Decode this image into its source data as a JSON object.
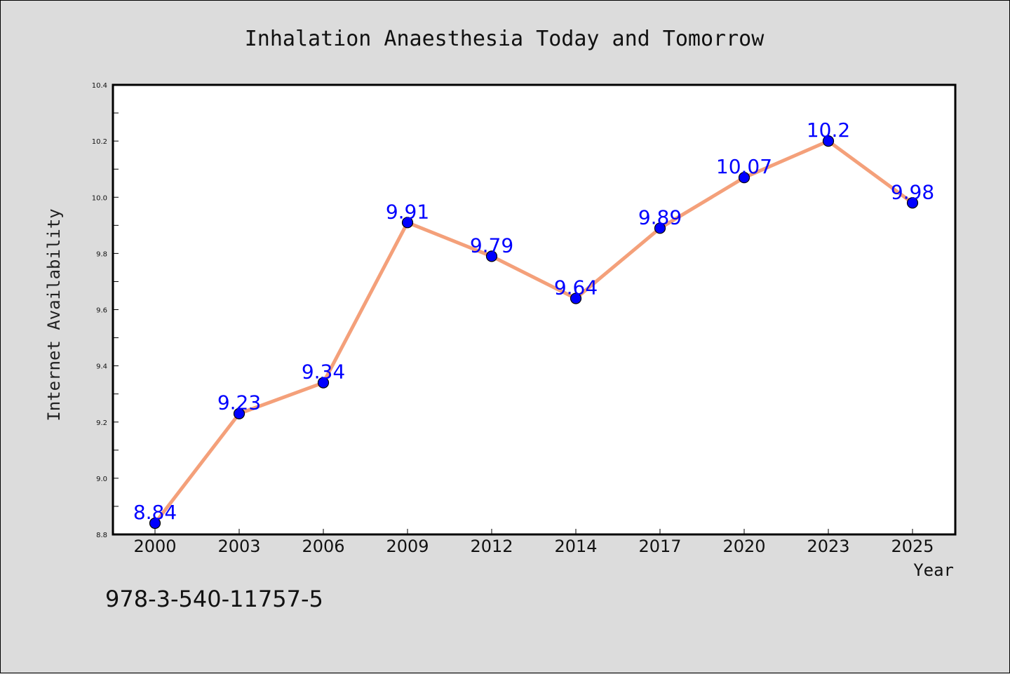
{
  "chart_data": {
    "type": "line",
    "title": "Inhalation Anaesthesia Today and Tomorrow",
    "xlabel": "Year",
    "ylabel": "Internet Availability",
    "categories": [
      "2000",
      "2003",
      "2006",
      "2009",
      "2012",
      "2014",
      "2017",
      "2020",
      "2023",
      "2025"
    ],
    "values": [
      8.84,
      9.23,
      9.34,
      9.91,
      9.79,
      9.64,
      9.89,
      10.07,
      10.2,
      9.98
    ],
    "data_labels": [
      "8.84",
      "9.23",
      "9.34",
      "9.91",
      "9.79",
      "9.64",
      "9.89",
      "10.07",
      "10.2",
      "9.98"
    ],
    "ylim": [
      8.8,
      10.4
    ],
    "yticks": [
      "8.8",
      "9.0",
      "9.2",
      "9.4",
      "9.6",
      "9.8",
      "10.0",
      "10.2",
      "10.4"
    ],
    "grid": false,
    "legend": "none",
    "line_color": "#f4a07a",
    "marker_color": "#0000ff",
    "label_color": "#0000ff"
  },
  "footnote": "978-3-540-11757-5"
}
